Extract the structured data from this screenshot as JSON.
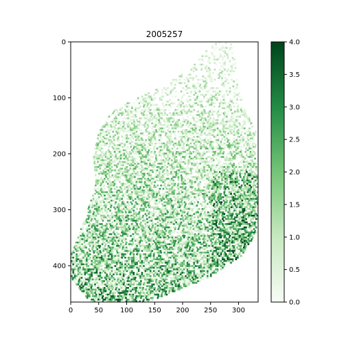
{
  "chart_data": {
    "type": "heatmap",
    "title": "2005257",
    "xlabel": "",
    "ylabel": "",
    "x_ticks": [
      0,
      50,
      100,
      150,
      200,
      250,
      300
    ],
    "y_ticks": [
      0,
      100,
      200,
      300,
      400
    ],
    "xlim": [
      0,
      335
    ],
    "ylim": [
      465,
      0
    ],
    "y_axis_inverted": true,
    "grid": false,
    "colormap": "Greens",
    "colorbar": {
      "range": [
        0.0,
        4.0
      ],
      "ticks": [
        "0.0",
        "0.5",
        "1.0",
        "1.5",
        "2.0",
        "2.5",
        "3.0",
        "3.5",
        "4.0"
      ],
      "placement": "right"
    },
    "colors": {
      "low": "#f7fcf5",
      "mid_low": "#c7e9c0",
      "mid": "#74c476",
      "mid_high": "#238b45",
      "high": "#00441b"
    }
  }
}
